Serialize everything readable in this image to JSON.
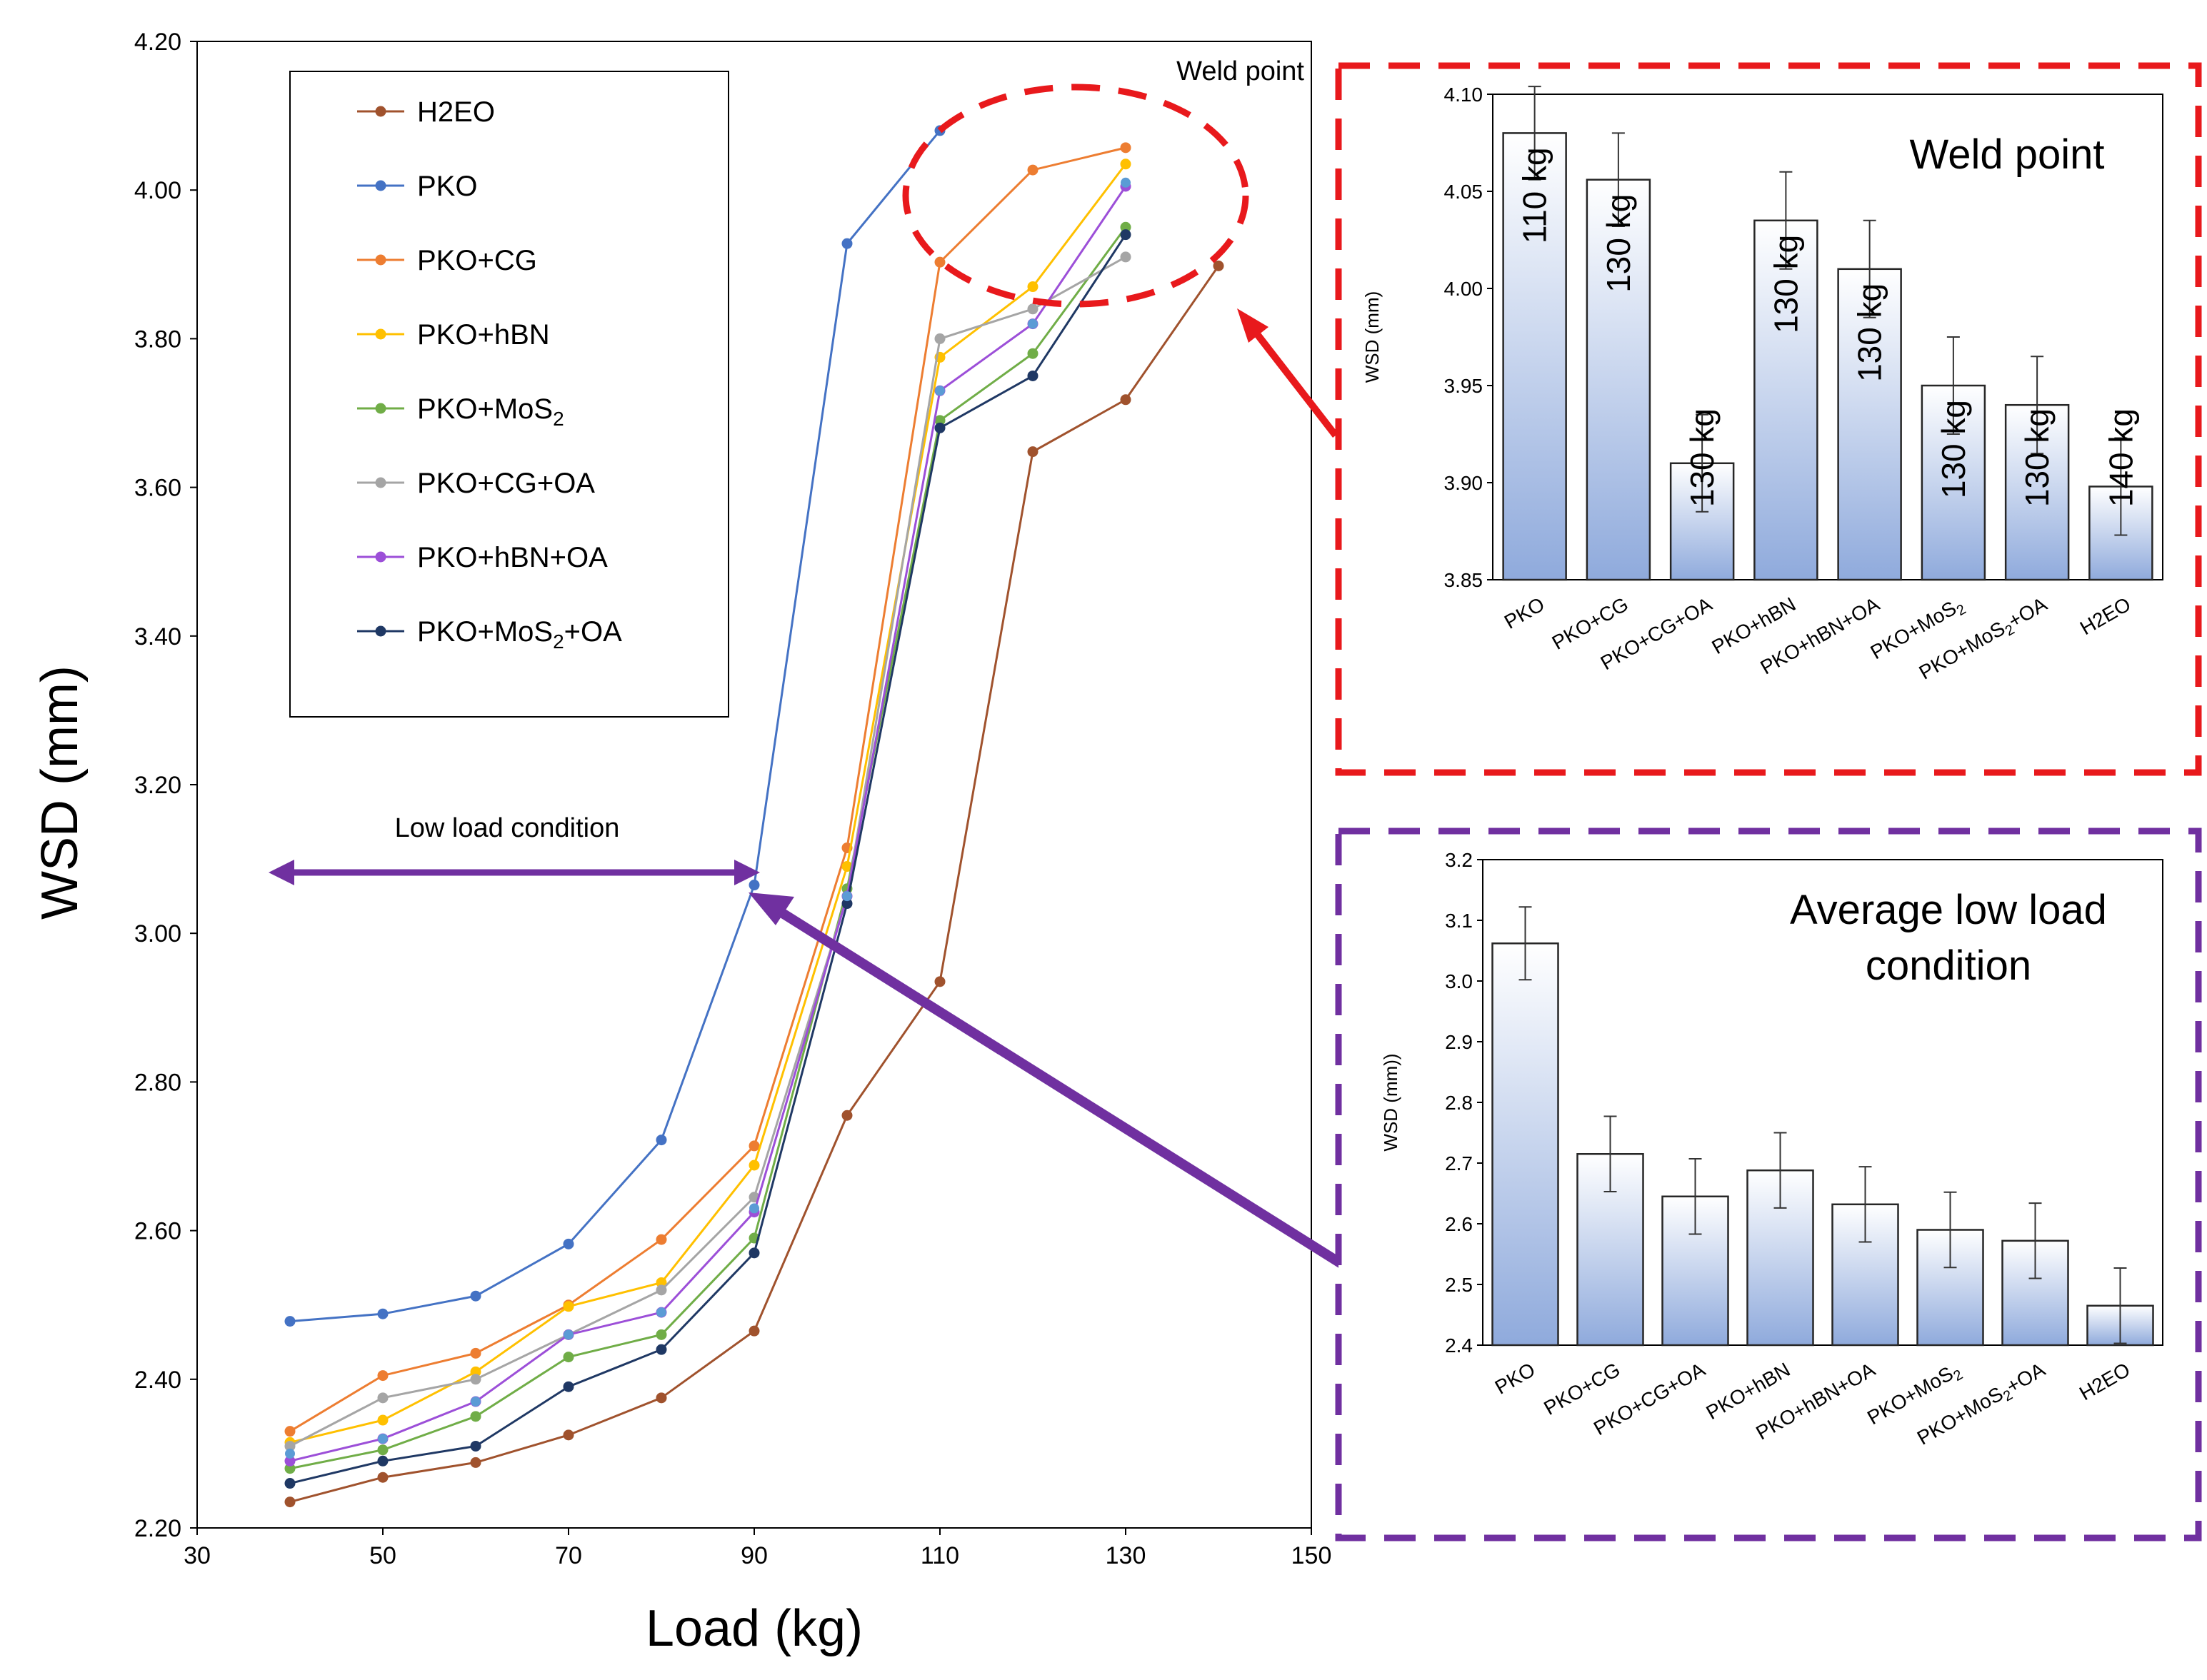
{
  "chart_data": [
    {
      "type": "line",
      "xlabel": "Load (kg)",
      "ylabel": "WSD (mm)",
      "xlim": [
        30,
        150
      ],
      "ylim": [
        2.2,
        4.2
      ],
      "xticks": [
        "30",
        "50",
        "70",
        "90",
        "110",
        "130",
        "150"
      ],
      "yticks": [
        "2.20",
        "2.40",
        "2.60",
        "2.80",
        "3.00",
        "3.20",
        "3.40",
        "3.60",
        "3.80",
        "4.00",
        "4.20"
      ],
      "legend_position": "top-left",
      "annotations": {
        "weld_point": "Weld point",
        "low_load": "Low load condition"
      },
      "series": [
        {
          "name": "H2EO",
          "label_main": "H2EO",
          "label_sub": "",
          "label_after": "",
          "color": "#a0522d",
          "x": [
            40,
            50,
            60,
            70,
            80,
            90,
            100,
            110,
            120,
            130,
            140
          ],
          "y": [
            2.235,
            2.268,
            2.288,
            2.325,
            2.375,
            2.465,
            2.755,
            2.935,
            3.648,
            3.718,
            3.898
          ]
        },
        {
          "name": "PKO",
          "label_main": "PKO",
          "label_sub": "",
          "label_after": "",
          "color": "#4472c4",
          "x": [
            40,
            50,
            60,
            70,
            80,
            90,
            100,
            110
          ],
          "y": [
            2.478,
            2.488,
            2.512,
            2.582,
            2.722,
            3.065,
            3.928,
            4.08
          ]
        },
        {
          "name": "PKO+CG",
          "label_main": "PKO+CG",
          "label_sub": "",
          "label_after": "",
          "color": "#ed7d31",
          "x": [
            40,
            50,
            60,
            70,
            80,
            90,
            100,
            110,
            120,
            130
          ],
          "y": [
            2.33,
            2.405,
            2.435,
            2.5,
            2.588,
            2.714,
            3.115,
            3.903,
            4.027,
            4.057
          ]
        },
        {
          "name": "PKO+hBN",
          "label_main": "PKO+hBN",
          "label_sub": "",
          "label_after": "",
          "color": "#ffc000",
          "x": [
            40,
            50,
            60,
            70,
            80,
            90,
            100,
            110,
            120,
            130
          ],
          "y": [
            2.315,
            2.345,
            2.41,
            2.498,
            2.53,
            2.688,
            3.09,
            3.775,
            3.87,
            4.035
          ]
        },
        {
          "name": "PKO+MoS2",
          "label_main": "PKO+MoS",
          "label_sub": "2",
          "label_after": "",
          "color": "#70ad47",
          "x": [
            40,
            50,
            60,
            70,
            80,
            90,
            100,
            110,
            120,
            130
          ],
          "y": [
            2.28,
            2.305,
            2.35,
            2.43,
            2.46,
            2.59,
            3.06,
            3.69,
            3.78,
            3.95
          ]
        },
        {
          "name": "PKO+CG+OA",
          "label_main": "PKO+CG+OA",
          "label_sub": "",
          "label_after": "",
          "color": "#a5a5a5",
          "x": [
            40,
            50,
            60,
            70,
            80,
            90,
            100,
            110,
            120,
            130
          ],
          "y": [
            2.31,
            2.375,
            2.4,
            2.46,
            2.52,
            2.645,
            3.05,
            3.8,
            3.84,
            3.91
          ]
        },
        {
          "name": "PKO+hBN+OA",
          "label_main": "PKO+hBN+OA",
          "label_sub": "",
          "label_after": "",
          "color": "#9c4fd8",
          "x": [
            40,
            50,
            60,
            70,
            80,
            90,
            100,
            110,
            120,
            130
          ],
          "y": [
            2.29,
            2.32,
            2.37,
            2.46,
            2.49,
            2.625,
            3.05,
            3.73,
            3.82,
            4.005
          ]
        },
        {
          "name": "PKO+MoS2+OA",
          "label_main": "PKO+MoS",
          "label_sub": "2",
          "label_after": "+OA",
          "color": "#1f3864",
          "x": [
            40,
            50,
            60,
            70,
            80,
            90,
            100,
            110,
            120,
            130
          ],
          "y": [
            2.26,
            2.29,
            2.31,
            2.39,
            2.44,
            2.57,
            3.04,
            3.68,
            3.75,
            3.94
          ]
        }
      ],
      "extra_markers": [
        {
          "series": "PKO+hBN+OA",
          "color": "#5b9bd5",
          "x": [
            40,
            50,
            60,
            70,
            80,
            90,
            100,
            110,
            120,
            130
          ],
          "y": [
            2.3,
            2.32,
            2.37,
            2.46,
            2.49,
            2.63,
            3.05,
            3.73,
            3.82,
            4.01
          ]
        }
      ]
    },
    {
      "type": "bar",
      "title": "Weld point",
      "ylabel": "WSD (mm)",
      "ylim": [
        3.85,
        4.1
      ],
      "yticks": [
        "3.85",
        "3.90",
        "3.95",
        "4.00",
        "4.05",
        "4.10"
      ],
      "categories": [
        {
          "main": "PKO",
          "sub": "",
          "after": ""
        },
        {
          "main": "PKO+CG",
          "sub": "",
          "after": ""
        },
        {
          "main": "PKO+CG+OA",
          "sub": "",
          "after": ""
        },
        {
          "main": "PKO+hBN",
          "sub": "",
          "after": ""
        },
        {
          "main": "PKO+hBN+OA",
          "sub": "",
          "after": ""
        },
        {
          "main": "PKO+MoS",
          "sub": "2",
          "after": ""
        },
        {
          "main": "PKO+MoS",
          "sub": "2",
          "after": "+OA"
        },
        {
          "main": "H2EO",
          "sub": "",
          "after": ""
        }
      ],
      "values": [
        4.08,
        4.056,
        3.91,
        4.035,
        4.01,
        3.95,
        3.94,
        3.898
      ],
      "errors": [
        0.024,
        0.024,
        0.025,
        0.025,
        0.025,
        0.025,
        0.025,
        0.025
      ],
      "bar_labels": [
        "110 kg",
        "130 kg",
        "130 kg",
        "130 kg",
        "130 kg",
        "130 kg",
        "130 kg",
        "140 kg"
      ]
    },
    {
      "type": "bar",
      "title_line1": "Average low load",
      "title_line2": "condition",
      "ylabel": "WSD (mm))",
      "ylim": [
        2.4,
        3.2
      ],
      "yticks": [
        "2.4",
        "2.5",
        "2.6",
        "2.7",
        "2.8",
        "2.9",
        "3.0",
        "3.1",
        "3.2"
      ],
      "categories": [
        {
          "main": "PKO",
          "sub": "",
          "after": ""
        },
        {
          "main": "PKO+CG",
          "sub": "",
          "after": ""
        },
        {
          "main": "PKO+CG+OA",
          "sub": "",
          "after": ""
        },
        {
          "main": "PKO+hBN",
          "sub": "",
          "after": ""
        },
        {
          "main": "PKO+hBN+OA",
          "sub": "",
          "after": ""
        },
        {
          "main": "PKO+MoS",
          "sub": "2",
          "after": ""
        },
        {
          "main": "PKO+MoS",
          "sub": "2",
          "after": "+OA"
        },
        {
          "main": "H2EO",
          "sub": "",
          "after": ""
        }
      ],
      "values": [
        3.062,
        2.715,
        2.645,
        2.688,
        2.632,
        2.59,
        2.572,
        2.465
      ],
      "errors": [
        0.06,
        0.062,
        0.062,
        0.062,
        0.062,
        0.062,
        0.062,
        0.062
      ]
    }
  ],
  "colors": {
    "weld_frame": "#e8191c",
    "low_frame": "#7030a0",
    "bar_top": "#ffffff",
    "bar_bottom": "#8faadc",
    "bar_edge": "#262626"
  }
}
